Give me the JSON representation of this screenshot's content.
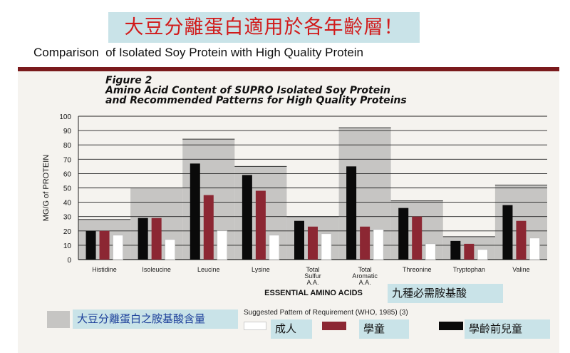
{
  "header": {
    "chinese_title": "大豆分離蛋白適用於各年齡層！",
    "english_subtitle": "Comparison  of Isolated Soy Protein with High Quality Protein"
  },
  "figure": {
    "label": "Figure 2",
    "line1": "Amino Acid Content of SUPRO Isolated Soy Protein",
    "line2": "and Recommended Patterns for High Quality Proteins"
  },
  "legend": {
    "caption": "Suggested Pattern of Requirement (WHO, 1985) (3)",
    "box_label": "大豆分離蛋白之胺基酸含量",
    "adult_label": "成人",
    "school_label": "學童",
    "preschool_label": "學齡前兒童",
    "essential_label_cn": "九種必需胺基酸"
  },
  "colors": {
    "soy_fill": "#c6c5c3",
    "adult": "#ffffff",
    "school": "#8c2733",
    "preschool": "#0a0a0a",
    "title_red": "#d11a1a",
    "overlay_bg": "#c9e3e8"
  },
  "chart_data": {
    "type": "bar",
    "title": "Figure 2 Amino Acid Content of SUPRO Isolated Soy Protein and Recommended Patterns for High Quality Proteins",
    "xlabel": "ESSENTIAL AMINO ACIDS",
    "ylabel": "MG/G of PROTEIN",
    "ylim": [
      0,
      100
    ],
    "yticks": [
      0,
      10,
      20,
      30,
      40,
      50,
      60,
      70,
      80,
      90,
      100
    ],
    "grid": true,
    "categories": [
      [
        "Histidine"
      ],
      [
        "Isoleucine"
      ],
      [
        "Leucine"
      ],
      [
        "Lysine"
      ],
      [
        "Total",
        "Sulfur",
        "A.A."
      ],
      [
        "Total",
        "Aromatic",
        "A.A."
      ],
      [
        "Threonine"
      ],
      [
        "Tryptophan"
      ],
      [
        "Valine"
      ]
    ],
    "soy_protein": [
      28,
      50,
      84,
      65,
      30,
      92,
      41,
      16,
      52
    ],
    "series": [
      {
        "name": "學齡前兒童",
        "values": [
          20,
          29,
          67,
          59,
          27,
          65,
          36,
          13,
          38
        ]
      },
      {
        "name": "學童",
        "values": [
          20,
          29,
          45,
          48,
          23,
          23,
          30,
          11,
          27
        ]
      },
      {
        "name": "成人",
        "values": [
          17,
          14,
          20,
          17,
          18,
          21,
          11,
          7,
          15
        ]
      }
    ]
  }
}
